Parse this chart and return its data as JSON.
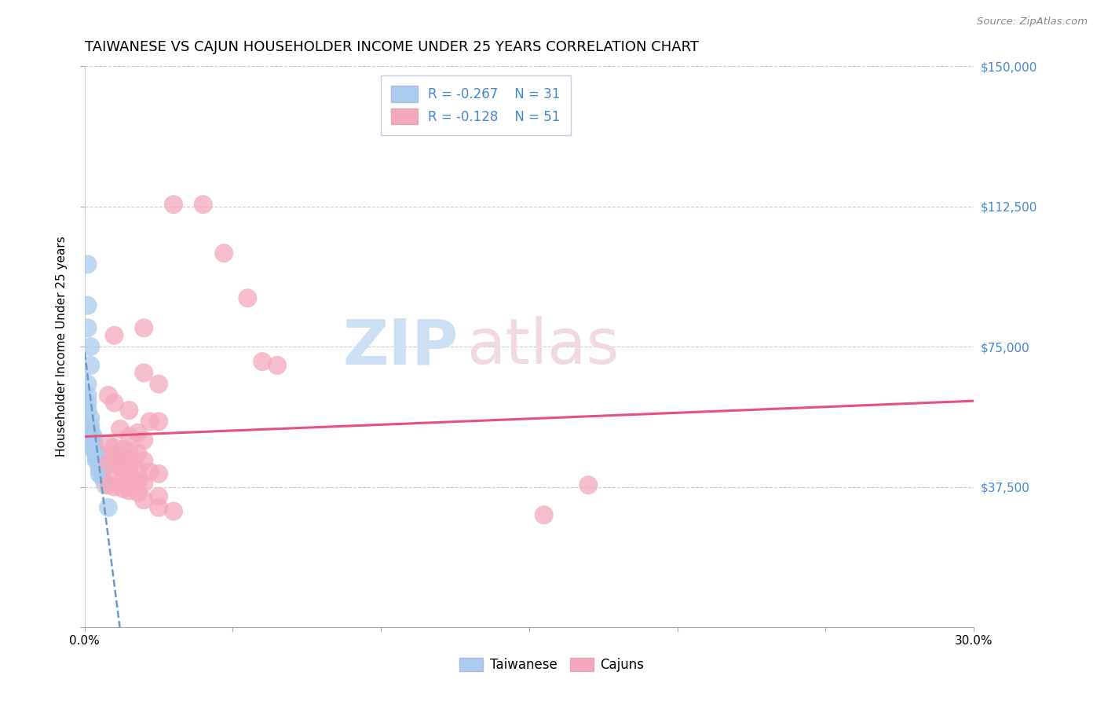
{
  "title": "TAIWANESE VS CAJUN HOUSEHOLDER INCOME UNDER 25 YEARS CORRELATION CHART",
  "source": "Source: ZipAtlas.com",
  "ylabel": "Householder Income Under 25 years",
  "xmin": 0.0,
  "xmax": 0.3,
  "ymin": 0,
  "ymax": 150000,
  "yticks": [
    0,
    37500,
    75000,
    112500,
    150000
  ],
  "ytick_labels": [
    "",
    "$37,500",
    "$75,000",
    "$112,500",
    "$150,000"
  ],
  "legend_r_taiwanese": "-0.267",
  "legend_n_taiwanese": "31",
  "legend_r_cajuns": "-0.128",
  "legend_n_cajuns": "51",
  "taiwanese_color": "#aaccee",
  "cajun_color": "#f4a8bc",
  "taiwanese_line_color": "#6699cc",
  "cajun_line_color": "#e8507a",
  "taiwanese_scatter": [
    [
      0.001,
      97000
    ],
    [
      0.001,
      86000
    ],
    [
      0.001,
      80000
    ],
    [
      0.002,
      75000
    ],
    [
      0.002,
      70000
    ],
    [
      0.001,
      65000
    ],
    [
      0.001,
      62000
    ],
    [
      0.001,
      60000
    ],
    [
      0.001,
      58000
    ],
    [
      0.002,
      56000
    ],
    [
      0.002,
      54000
    ],
    [
      0.002,
      53000
    ],
    [
      0.002,
      52000
    ],
    [
      0.003,
      51000
    ],
    [
      0.003,
      50000
    ],
    [
      0.003,
      49000
    ],
    [
      0.003,
      48500
    ],
    [
      0.003,
      48000
    ],
    [
      0.003,
      47500
    ],
    [
      0.004,
      47000
    ],
    [
      0.004,
      46000
    ],
    [
      0.004,
      45500
    ],
    [
      0.004,
      45000
    ],
    [
      0.004,
      44500
    ],
    [
      0.005,
      44000
    ],
    [
      0.005,
      43000
    ],
    [
      0.005,
      42000
    ],
    [
      0.005,
      41000
    ],
    [
      0.006,
      40000
    ],
    [
      0.007,
      38000
    ],
    [
      0.008,
      32000
    ]
  ],
  "cajun_scatter": [
    [
      0.03,
      113000
    ],
    [
      0.04,
      113000
    ],
    [
      0.047,
      100000
    ],
    [
      0.055,
      88000
    ],
    [
      0.02,
      80000
    ],
    [
      0.01,
      78000
    ],
    [
      0.06,
      71000
    ],
    [
      0.065,
      70000
    ],
    [
      0.02,
      68000
    ],
    [
      0.025,
      65000
    ],
    [
      0.008,
      62000
    ],
    [
      0.01,
      60000
    ],
    [
      0.015,
      58000
    ],
    [
      0.022,
      55000
    ],
    [
      0.025,
      55000
    ],
    [
      0.012,
      53000
    ],
    [
      0.018,
      52000
    ],
    [
      0.015,
      51000
    ],
    [
      0.02,
      50000
    ],
    [
      0.008,
      49000
    ],
    [
      0.01,
      48000
    ],
    [
      0.013,
      47500
    ],
    [
      0.015,
      47000
    ],
    [
      0.018,
      46500
    ],
    [
      0.01,
      46000
    ],
    [
      0.012,
      45500
    ],
    [
      0.015,
      45000
    ],
    [
      0.02,
      44500
    ],
    [
      0.008,
      44000
    ],
    [
      0.01,
      43500
    ],
    [
      0.012,
      43000
    ],
    [
      0.015,
      42500
    ],
    [
      0.018,
      42000
    ],
    [
      0.022,
      41500
    ],
    [
      0.025,
      41000
    ],
    [
      0.01,
      40500
    ],
    [
      0.013,
      40000
    ],
    [
      0.015,
      39500
    ],
    [
      0.018,
      39000
    ],
    [
      0.02,
      38500
    ],
    [
      0.008,
      38000
    ],
    [
      0.01,
      37500
    ],
    [
      0.013,
      37000
    ],
    [
      0.015,
      36500
    ],
    [
      0.018,
      36000
    ],
    [
      0.025,
      35000
    ],
    [
      0.02,
      34000
    ],
    [
      0.025,
      32000
    ],
    [
      0.03,
      31000
    ],
    [
      0.155,
      30000
    ],
    [
      0.17,
      38000
    ]
  ],
  "gridline_color": "#cccccc",
  "background_color": "#ffffff",
  "title_fontsize": 13,
  "axis_label_fontsize": 11,
  "tick_fontsize": 11,
  "legend_fontsize": 12,
  "watermark_zip_color": "#ccdff5",
  "watermark_atlas_color": "#f0d8e4"
}
